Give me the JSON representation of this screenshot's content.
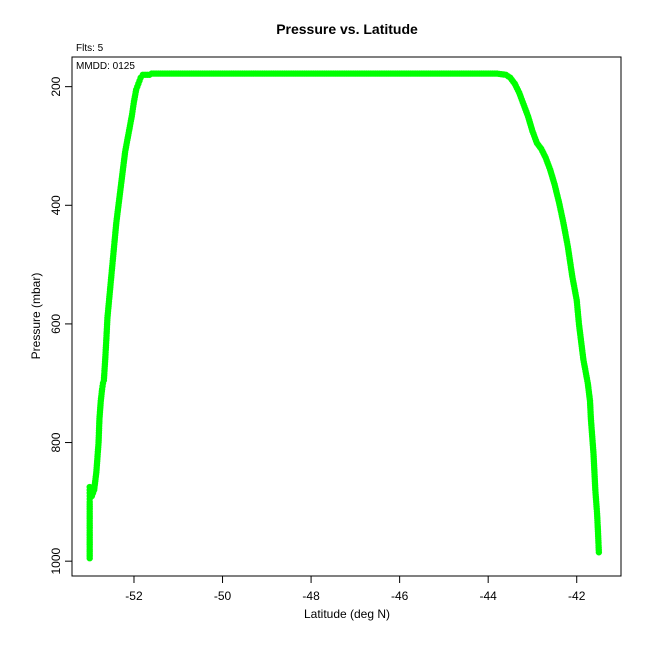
{
  "chart_data": {
    "type": "scatter",
    "title": "Pressure vs. Latitude",
    "xlabel": "Latitude (deg N)",
    "ylabel": "Pressure (mbar)",
    "annotations": {
      "flts": "Flts: 5",
      "mmdd": "MMDD: 0125"
    },
    "xlim": [
      -53.4,
      -41.0
    ],
    "ylim": [
      1025,
      150
    ],
    "y_reversed": true,
    "grid": false,
    "x_ticks": [
      -52,
      -50,
      -48,
      -46,
      -44,
      -42
    ],
    "y_ticks": [
      200,
      400,
      600,
      800,
      1000
    ],
    "series": [
      {
        "color": "#00ff00",
        "marker": "filled-circle",
        "x": [
          -53.0,
          -53.0,
          -53.0,
          -53.0,
          -53.0,
          -53.0,
          -53.0,
          -53.0,
          -53.0,
          -53.0,
          -53.0,
          -52.95,
          -52.9,
          -52.85,
          -52.82,
          -52.8,
          -52.78,
          -52.75,
          -52.72,
          -52.7,
          -52.68,
          -52.65,
          -52.62,
          -52.6,
          -52.55,
          -52.5,
          -52.45,
          -52.4,
          -52.35,
          -52.3,
          -52.25,
          -52.2,
          -52.15,
          -52.1,
          -52.05,
          -52.0,
          -51.95,
          -51.9,
          -51.85,
          -51.8,
          -51.75,
          -51.7,
          -51.65,
          -51.6,
          -51.55,
          -51.5,
          -51.0,
          -50.0,
          -49.0,
          -48.0,
          -47.0,
          -46.0,
          -45.0,
          -44.5,
          -44.0,
          -43.8,
          -43.6,
          -43.5,
          -43.4,
          -43.3,
          -43.2,
          -43.1,
          -43.0,
          -42.9,
          -42.8,
          -42.7,
          -42.6,
          -42.5,
          -42.4,
          -42.3,
          -42.2,
          -42.1,
          -42.0,
          -41.95,
          -41.9,
          -41.85,
          -41.8,
          -41.75,
          -41.7,
          -41.68,
          -41.65,
          -41.62,
          -41.6,
          -41.58,
          -41.56,
          -41.54,
          -41.52,
          -41.5
        ],
        "y": [
          995,
          980,
          960,
          940,
          920,
          900,
          895,
          890,
          885,
          880,
          875,
          890,
          880,
          850,
          820,
          800,
          760,
          730,
          710,
          700,
          695,
          660,
          620,
          590,
          550,
          510,
          470,
          430,
          400,
          370,
          340,
          310,
          290,
          270,
          250,
          225,
          205,
          195,
          185,
          180,
          180,
          180,
          180,
          178,
          178,
          178,
          178,
          178,
          178,
          178,
          178,
          178,
          178,
          178,
          178,
          178,
          180,
          185,
          195,
          210,
          230,
          250,
          275,
          295,
          305,
          320,
          340,
          365,
          395,
          430,
          470,
          520,
          560,
          600,
          630,
          660,
          680,
          700,
          730,
          760,
          790,
          820,
          850,
          880,
          900,
          920,
          950,
          985
        ]
      }
    ]
  }
}
